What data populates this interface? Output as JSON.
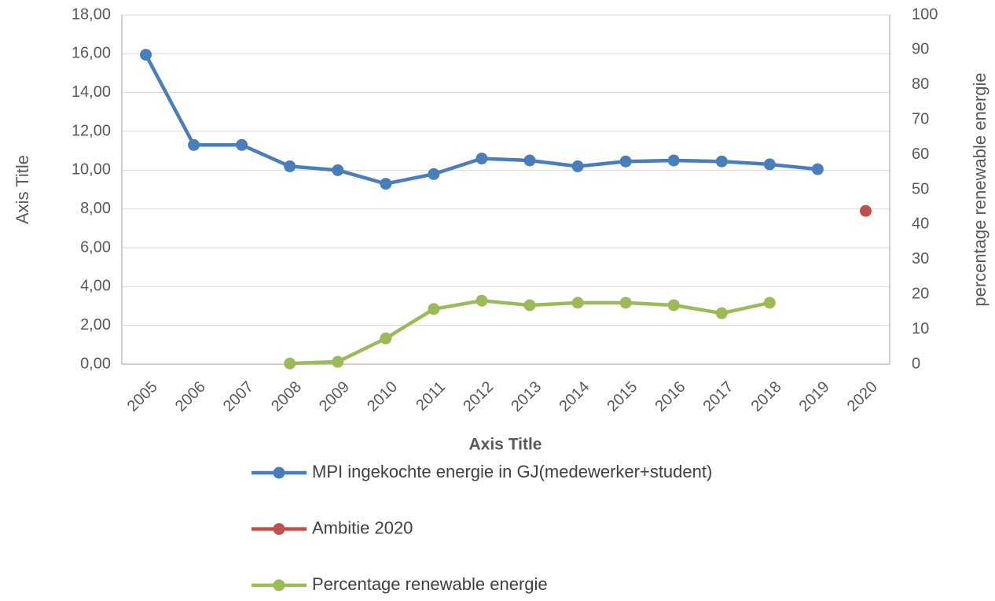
{
  "chart_data": {
    "type": "line",
    "categories": [
      "2005",
      "2006",
      "2007",
      "2008",
      "2009",
      "2010",
      "2011",
      "2012",
      "2013",
      "2014",
      "2015",
      "2016",
      "2017",
      "2018",
      "2019",
      "2020"
    ],
    "series": [
      {
        "name": "MPI ingekochte energie in GJ(medewerker+student)",
        "color": "#4a7ebb",
        "axis": "y",
        "values": [
          15.95,
          11.3,
          11.3,
          10.2,
          10.0,
          9.3,
          9.8,
          10.6,
          10.5,
          10.2,
          10.45,
          10.5,
          10.45,
          10.3,
          10.05,
          null
        ]
      },
      {
        "name": "Ambitie 2020",
        "color": "#c0504d",
        "axis": "y",
        "values": [
          null,
          null,
          null,
          null,
          null,
          null,
          null,
          null,
          null,
          null,
          null,
          null,
          null,
          null,
          null,
          7.9
        ]
      },
      {
        "name": "Percentage renewable energie",
        "color": "#9bbb59",
        "axis": "y2",
        "values": [
          null,
          null,
          null,
          0.2,
          0.7,
          7.4,
          15.8,
          18.2,
          16.9,
          17.6,
          17.6,
          16.9,
          14.6,
          17.6,
          null,
          null
        ]
      }
    ],
    "xlabel": "Axis Title",
    "ylabel": "Axis Title",
    "y2label": "percentage renewable energie",
    "ylim": [
      0,
      18
    ],
    "yticks": [
      {
        "value": 0,
        "label": "0,00"
      },
      {
        "value": 2,
        "label": "2,00"
      },
      {
        "value": 4,
        "label": "4,00"
      },
      {
        "value": 6,
        "label": "6,00"
      },
      {
        "value": 8,
        "label": "8,00"
      },
      {
        "value": 10,
        "label": "10,00"
      },
      {
        "value": 12,
        "label": "12,00"
      },
      {
        "value": 14,
        "label": "14,00"
      },
      {
        "value": 16,
        "label": "16,00"
      },
      {
        "value": 18,
        "label": "18,00"
      }
    ],
    "y2lim": [
      0,
      100
    ],
    "y2ticks": [
      0,
      10,
      20,
      30,
      40,
      50,
      60,
      70,
      80,
      90,
      100
    ],
    "grid": true,
    "legend": "bottom"
  }
}
